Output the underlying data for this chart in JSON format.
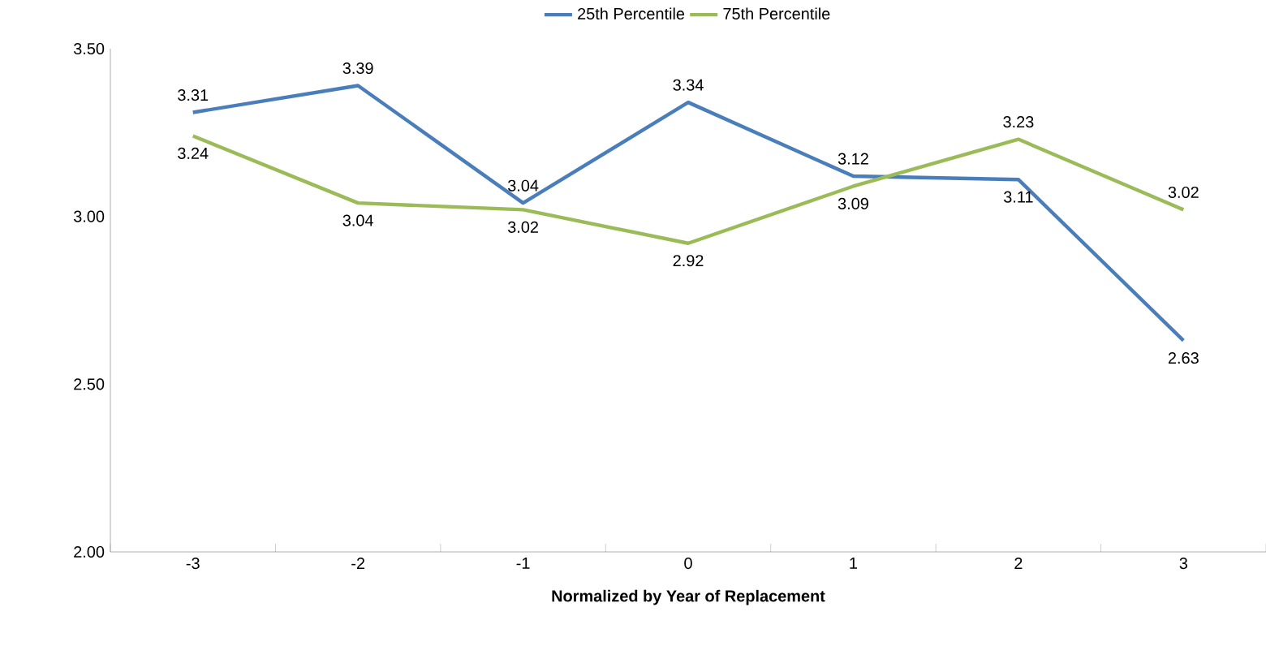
{
  "chart_data": {
    "type": "line",
    "xlabel": "Normalized by Year of Replacement",
    "categories": [
      "-3",
      "-2",
      "-1",
      "0",
      "1",
      "2",
      "3"
    ],
    "series": [
      {
        "name": "25th Percentile",
        "color": "#4a7ebb",
        "values": [
          3.31,
          3.39,
          3.04,
          3.34,
          3.12,
          3.11,
          2.63
        ]
      },
      {
        "name": "75th Percentile",
        "color": "#9bbb59",
        "values": [
          3.24,
          3.04,
          3.02,
          2.92,
          3.09,
          3.23,
          3.02
        ]
      }
    ],
    "ylim": [
      2.0,
      3.5
    ],
    "yticks": [
      {
        "value": 2.0,
        "label": "2.00"
      },
      {
        "value": 2.5,
        "label": "2.50"
      },
      {
        "value": 3.0,
        "label": "3.00"
      },
      {
        "value": 3.5,
        "label": "3.50"
      }
    ],
    "data_labels": true,
    "legend": "top",
    "grid": false,
    "marker": "none",
    "line_style": "solid"
  }
}
